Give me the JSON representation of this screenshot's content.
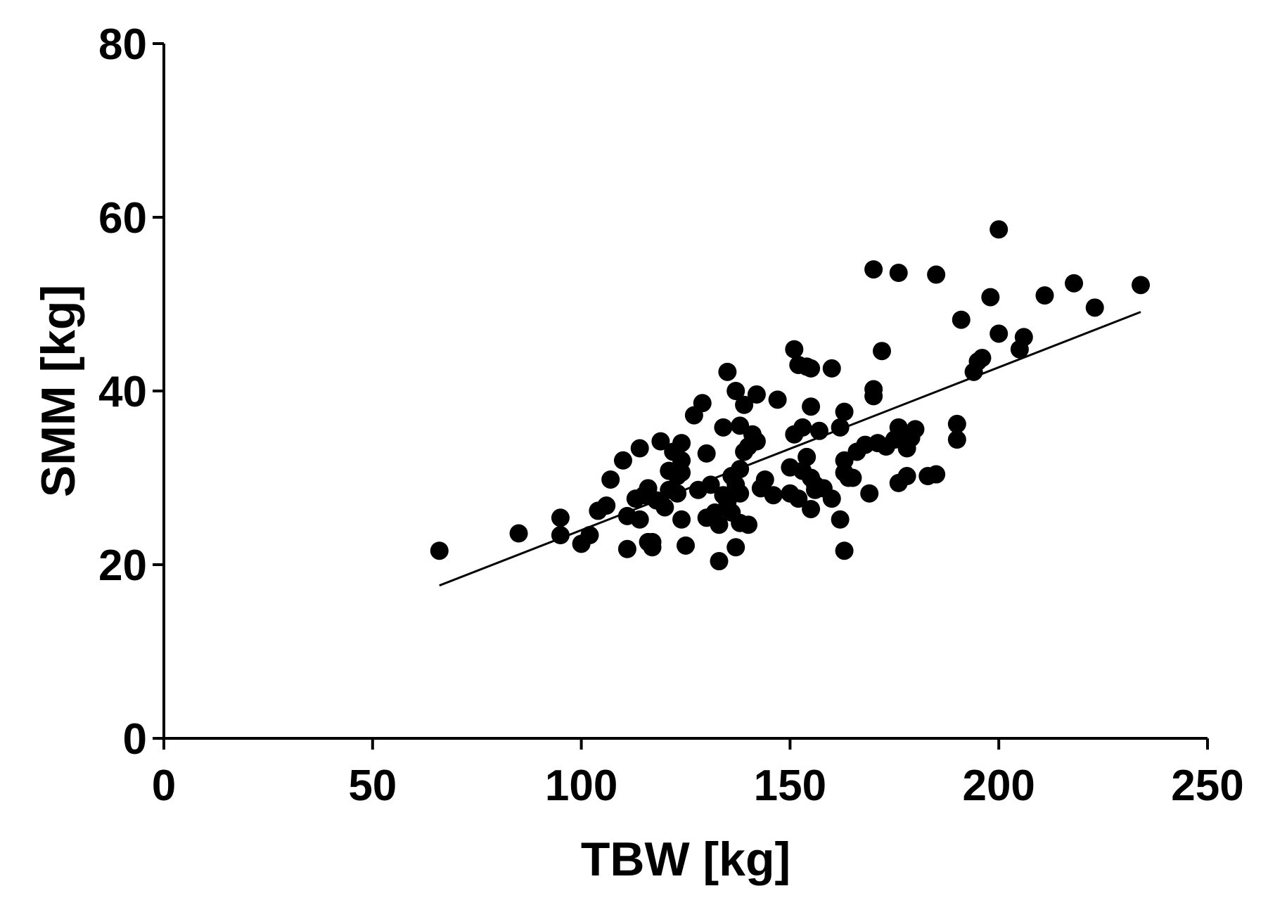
{
  "chart_data": {
    "type": "scatter",
    "title": "",
    "xlabel": "TBW [kg]",
    "ylabel": "SMM [kg]",
    "xlim": [
      0,
      250
    ],
    "ylim": [
      0,
      80
    ],
    "x_ticks": [
      0,
      50,
      100,
      150,
      200,
      250
    ],
    "y_ticks": [
      0,
      20,
      40,
      60,
      80
    ],
    "x_tick_labels": [
      "0",
      "50",
      "100",
      "150",
      "200",
      "250"
    ],
    "y_tick_labels": [
      "0",
      "20",
      "40",
      "60",
      "80"
    ],
    "grid": false,
    "legend": "none",
    "point_color": "#000000",
    "series": [
      {
        "type": "scatter",
        "x": [
          66,
          85,
          95,
          95,
          100,
          102,
          104,
          106,
          107,
          110,
          111,
          111,
          113,
          114,
          114,
          115,
          116,
          116,
          117,
          117,
          118,
          119,
          120,
          121,
          121,
          122,
          123,
          123,
          124,
          124,
          124,
          124,
          125,
          127,
          128,
          129,
          130,
          130,
          131,
          132,
          133,
          133,
          134,
          134,
          135,
          135,
          136,
          136,
          137,
          137,
          137,
          138,
          138,
          138,
          138,
          139,
          139,
          140,
          140,
          141,
          142,
          142,
          143,
          144,
          146,
          147,
          150,
          150,
          151,
          151,
          152,
          152,
          153,
          153,
          154,
          154,
          155,
          155,
          155,
          155,
          156,
          156,
          157,
          158,
          160,
          160,
          162,
          162,
          163,
          163,
          163,
          163,
          164,
          165,
          166,
          168,
          169,
          170,
          170,
          170,
          171,
          172,
          173,
          175,
          176,
          176,
          176,
          177,
          178,
          178,
          179,
          180,
          183,
          185,
          185,
          190,
          190,
          191,
          194,
          195,
          196,
          198,
          200,
          200,
          205,
          206,
          211,
          218,
          223,
          234
        ],
        "y": [
          21.6,
          23.6,
          25.4,
          23.4,
          22.4,
          23.4,
          26.2,
          26.8,
          29.8,
          32.0,
          25.6,
          21.8,
          27.6,
          33.4,
          25.2,
          28.0,
          28.8,
          22.6,
          22.0,
          22.6,
          27.4,
          34.2,
          26.6,
          28.6,
          30.8,
          33.0,
          30.2,
          28.2,
          34.0,
          32.0,
          30.6,
          25.2,
          22.2,
          37.2,
          28.6,
          38.6,
          32.8,
          25.4,
          29.2,
          26.0,
          20.4,
          24.6,
          35.8,
          28.0,
          42.2,
          27.2,
          30.2,
          26.0,
          29.2,
          40.0,
          22.0,
          36.0,
          31.0,
          28.2,
          24.8,
          33.0,
          38.4,
          24.6,
          33.6,
          35.0,
          34.2,
          39.6,
          28.8,
          29.8,
          28.0,
          39.0,
          31.2,
          28.2,
          35.0,
          44.8,
          43.0,
          27.6,
          35.8,
          30.8,
          42.8,
          32.4,
          42.6,
          38.2,
          26.4,
          30.0,
          29.2,
          28.6,
          35.4,
          28.8,
          27.6,
          42.6,
          25.2,
          35.8,
          37.6,
          32.0,
          30.6,
          21.6,
          30.0,
          30.0,
          33.0,
          33.8,
          28.2,
          39.4,
          40.2,
          54.0,
          34.0,
          44.6,
          33.6,
          34.4,
          35.8,
          29.4,
          53.6,
          34.8,
          30.2,
          33.4,
          34.6,
          35.6,
          30.2,
          30.4,
          53.4,
          36.2,
          34.4,
          48.2,
          42.2,
          43.4,
          43.8,
          50.8,
          58.6,
          46.6,
          44.8,
          46.2,
          51.0,
          52.4,
          49.6,
          52.2
        ]
      }
    ],
    "fit_line": {
      "x": [
        66,
        234
      ],
      "y": [
        17.6,
        49.1
      ]
    }
  }
}
